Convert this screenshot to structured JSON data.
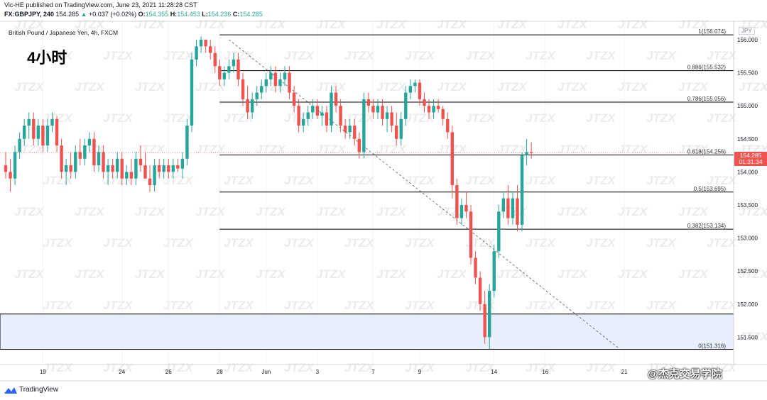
{
  "header": {
    "published": "Vic-HE published on TradingView.com, June 23, 2021 11:28:28 CST",
    "symbol": "FX:GBPJPY, 240",
    "last": "154.285",
    "change_arrow": "▲",
    "change": "+0.037 (+0.02%)",
    "o_label": "O:",
    "o": "154.355",
    "h_label": "H:",
    "h": "154.453",
    "l_label": "L:",
    "l": "154.236",
    "c_label": "C:",
    "c": "154.285"
  },
  "instrument": "British Pound / Japanese Yen, 4h, FXCM",
  "timeframe_label": "4小时",
  "currency": "JPY",
  "price_badge": {
    "price": "154.285",
    "countdown": "01:31:34"
  },
  "brand": "TradingView",
  "watermark": {
    "text": "JTZX",
    "credit": "@杰克交易学院"
  },
  "colors": {
    "up": "#26a69a",
    "down": "#ef5350",
    "line": "#000000",
    "zone": "#e8eefc"
  },
  "chart_data": {
    "type": "candlestick",
    "ylim": [
      151.15,
      156.15
    ],
    "ytick_labels": [
      "151.500",
      "152.000",
      "152.500",
      "153.000",
      "153.500",
      "154.000",
      "154.500",
      "155.000",
      "155.500",
      "156.000"
    ],
    "xtick_labels": [
      "19",
      "24",
      "26",
      "28",
      "Jun",
      "3",
      "7",
      "9",
      "14",
      "16",
      "21"
    ],
    "xtick_index": [
      8,
      25,
      35,
      46,
      56,
      67,
      79,
      89,
      105,
      116,
      133
    ],
    "fib_levels": [
      {
        "label": "1(156.074)",
        "price": 156.074
      },
      {
        "label": "0.886(155.532)",
        "price": 155.532
      },
      {
        "label": "0.786(155.056)",
        "price": 155.056
      },
      {
        "label": "0.618(154.256)",
        "price": 154.256
      },
      {
        "label": "0.5(153.695)",
        "price": 153.695
      },
      {
        "label": "0.382(153.134)",
        "price": 153.134
      },
      {
        "label": "0(151.316)",
        "price": 151.316
      }
    ],
    "zone": [
      151.316,
      151.85
    ],
    "trendline": {
      "from": [
        48,
        156.0
      ],
      "to": [
        132,
        151.32
      ]
    },
    "ohlc": [
      [
        154.1,
        154.3,
        153.9,
        154.0
      ],
      [
        154.0,
        154.2,
        153.7,
        153.9
      ],
      [
        153.9,
        154.4,
        153.8,
        154.3
      ],
      [
        154.3,
        154.6,
        154.2,
        154.5
      ],
      [
        154.5,
        154.8,
        154.4,
        154.7
      ],
      [
        154.7,
        154.9,
        154.5,
        154.8
      ],
      [
        154.8,
        154.9,
        154.4,
        154.5
      ],
      [
        154.5,
        154.8,
        154.4,
        154.7
      ],
      [
        154.7,
        154.8,
        154.3,
        154.4
      ],
      [
        154.4,
        154.8,
        154.3,
        154.7
      ],
      [
        154.7,
        154.9,
        154.6,
        154.8
      ],
      [
        154.8,
        154.85,
        154.3,
        154.4
      ],
      [
        154.4,
        154.5,
        153.9,
        154.0
      ],
      [
        154.0,
        154.2,
        153.8,
        154.1
      ],
      [
        154.1,
        154.3,
        153.9,
        154.0
      ],
      [
        154.0,
        154.4,
        153.9,
        154.3
      ],
      [
        154.3,
        154.5,
        154.1,
        154.2
      ],
      [
        154.2,
        154.5,
        154.1,
        154.4
      ],
      [
        154.4,
        154.6,
        154.3,
        154.5
      ],
      [
        154.5,
        154.6,
        154.0,
        154.1
      ],
      [
        154.1,
        154.4,
        154.0,
        154.3
      ],
      [
        154.3,
        154.4,
        153.9,
        154.0
      ],
      [
        154.0,
        154.2,
        153.8,
        154.1
      ],
      [
        154.1,
        154.2,
        153.9,
        154.0
      ],
      [
        154.0,
        154.3,
        153.9,
        154.2
      ],
      [
        154.2,
        154.3,
        153.8,
        153.9
      ],
      [
        153.9,
        154.1,
        153.8,
        154.0
      ],
      [
        154.0,
        154.2,
        153.8,
        153.9
      ],
      [
        153.9,
        154.3,
        153.8,
        154.2
      ],
      [
        154.2,
        154.4,
        154.0,
        154.1
      ],
      [
        154.1,
        154.3,
        153.9,
        153.9
      ],
      [
        153.9,
        154.1,
        153.7,
        153.8
      ],
      [
        153.8,
        154.2,
        153.7,
        154.1
      ],
      [
        154.1,
        154.2,
        153.9,
        154.0
      ],
      [
        154.0,
        154.2,
        153.9,
        154.1
      ],
      [
        154.1,
        154.2,
        153.9,
        154.0
      ],
      [
        154.0,
        154.2,
        153.9,
        154.1
      ],
      [
        154.1,
        154.2,
        154.0,
        154.05
      ],
      [
        154.05,
        154.3,
        153.9,
        154.2
      ],
      [
        154.2,
        154.8,
        154.1,
        154.7
      ],
      [
        154.7,
        155.8,
        154.6,
        155.7
      ],
      [
        155.7,
        156.0,
        155.6,
        155.9
      ],
      [
        155.9,
        156.05,
        155.8,
        156.0
      ],
      [
        156.0,
        156.0,
        155.8,
        155.9
      ],
      [
        155.9,
        156.0,
        155.7,
        155.8
      ],
      [
        155.8,
        155.9,
        155.5,
        155.6
      ],
      [
        155.6,
        155.7,
        155.3,
        155.4
      ],
      [
        155.4,
        155.6,
        155.3,
        155.5
      ],
      [
        155.5,
        155.7,
        155.4,
        155.6
      ],
      [
        155.6,
        155.8,
        155.5,
        155.7
      ],
      [
        155.7,
        155.8,
        155.3,
        155.4
      ],
      [
        155.4,
        155.5,
        155.0,
        155.1
      ],
      [
        155.1,
        155.3,
        154.8,
        154.9
      ],
      [
        154.9,
        155.2,
        154.8,
        155.1
      ],
      [
        155.1,
        155.3,
        155.0,
        155.2
      ],
      [
        155.2,
        155.4,
        155.1,
        155.3
      ],
      [
        155.3,
        155.5,
        155.2,
        155.4
      ],
      [
        155.4,
        155.6,
        155.3,
        155.5
      ],
      [
        155.5,
        155.6,
        155.2,
        155.3
      ],
      [
        155.3,
        155.5,
        155.2,
        155.4
      ],
      [
        155.4,
        155.6,
        155.3,
        155.5
      ],
      [
        155.5,
        155.6,
        155.1,
        155.2
      ],
      [
        155.2,
        155.3,
        154.9,
        155.0
      ],
      [
        155.0,
        155.1,
        154.6,
        154.7
      ],
      [
        154.7,
        154.9,
        154.6,
        154.8
      ],
      [
        154.8,
        155.0,
        154.7,
        154.9
      ],
      [
        154.9,
        155.1,
        154.8,
        155.0
      ],
      [
        155.0,
        155.1,
        154.8,
        154.85
      ],
      [
        154.85,
        155.0,
        154.7,
        154.9
      ],
      [
        154.9,
        155.0,
        154.6,
        154.7
      ],
      [
        154.7,
        155.3,
        154.6,
        155.2
      ],
      [
        155.2,
        155.3,
        154.9,
        155.0
      ],
      [
        155.0,
        155.1,
        154.6,
        154.7
      ],
      [
        154.7,
        154.8,
        154.5,
        154.6
      ],
      [
        154.6,
        154.8,
        154.5,
        154.7
      ],
      [
        154.7,
        154.8,
        154.4,
        154.5
      ],
      [
        154.5,
        154.6,
        154.2,
        154.3
      ],
      [
        154.3,
        155.2,
        154.2,
        155.1
      ],
      [
        155.1,
        155.2,
        154.9,
        155.0
      ],
      [
        155.0,
        155.1,
        154.8,
        154.9
      ],
      [
        154.9,
        155.1,
        154.8,
        155.0
      ],
      [
        155.0,
        155.1,
        154.7,
        154.8
      ],
      [
        154.8,
        155.0,
        154.6,
        154.9
      ],
      [
        154.9,
        155.0,
        154.6,
        154.7
      ],
      [
        154.7,
        154.9,
        154.4,
        154.5
      ],
      [
        154.5,
        154.9,
        154.4,
        154.8
      ],
      [
        154.8,
        155.3,
        154.7,
        155.2
      ],
      [
        155.2,
        155.4,
        155.1,
        155.3
      ],
      [
        155.3,
        155.4,
        155.2,
        155.35
      ],
      [
        155.35,
        155.4,
        155.0,
        155.1
      ],
      [
        155.1,
        155.2,
        154.9,
        155.0
      ],
      [
        155.0,
        155.1,
        154.8,
        154.9
      ],
      [
        154.9,
        155.1,
        154.8,
        155.0
      ],
      [
        155.0,
        155.1,
        154.9,
        154.95
      ],
      [
        154.95,
        155.0,
        154.7,
        154.8
      ],
      [
        154.8,
        154.9,
        154.5,
        154.6
      ],
      [
        154.6,
        154.7,
        153.6,
        153.8
      ],
      [
        153.8,
        153.9,
        153.2,
        153.3
      ],
      [
        153.3,
        153.6,
        153.2,
        153.5
      ],
      [
        153.5,
        153.7,
        153.3,
        153.4
      ],
      [
        153.4,
        153.5,
        152.6,
        152.7
      ],
      [
        152.7,
        152.8,
        152.3,
        152.4
      ],
      [
        152.4,
        152.5,
        151.9,
        152.0
      ],
      [
        152.0,
        152.2,
        151.4,
        151.5
      ],
      [
        151.5,
        152.3,
        151.32,
        152.2
      ],
      [
        152.2,
        152.9,
        152.1,
        152.8
      ],
      [
        152.8,
        153.5,
        152.7,
        153.4
      ],
      [
        153.4,
        153.7,
        153.3,
        153.6
      ],
      [
        153.6,
        153.8,
        153.2,
        153.3
      ],
      [
        153.3,
        153.7,
        153.2,
        153.6
      ],
      [
        153.6,
        153.8,
        153.1,
        153.2
      ],
      [
        153.2,
        154.3,
        153.1,
        154.25
      ],
      [
        154.25,
        154.5,
        154.1,
        154.3
      ],
      [
        154.3,
        154.45,
        154.2,
        154.285
      ]
    ]
  }
}
